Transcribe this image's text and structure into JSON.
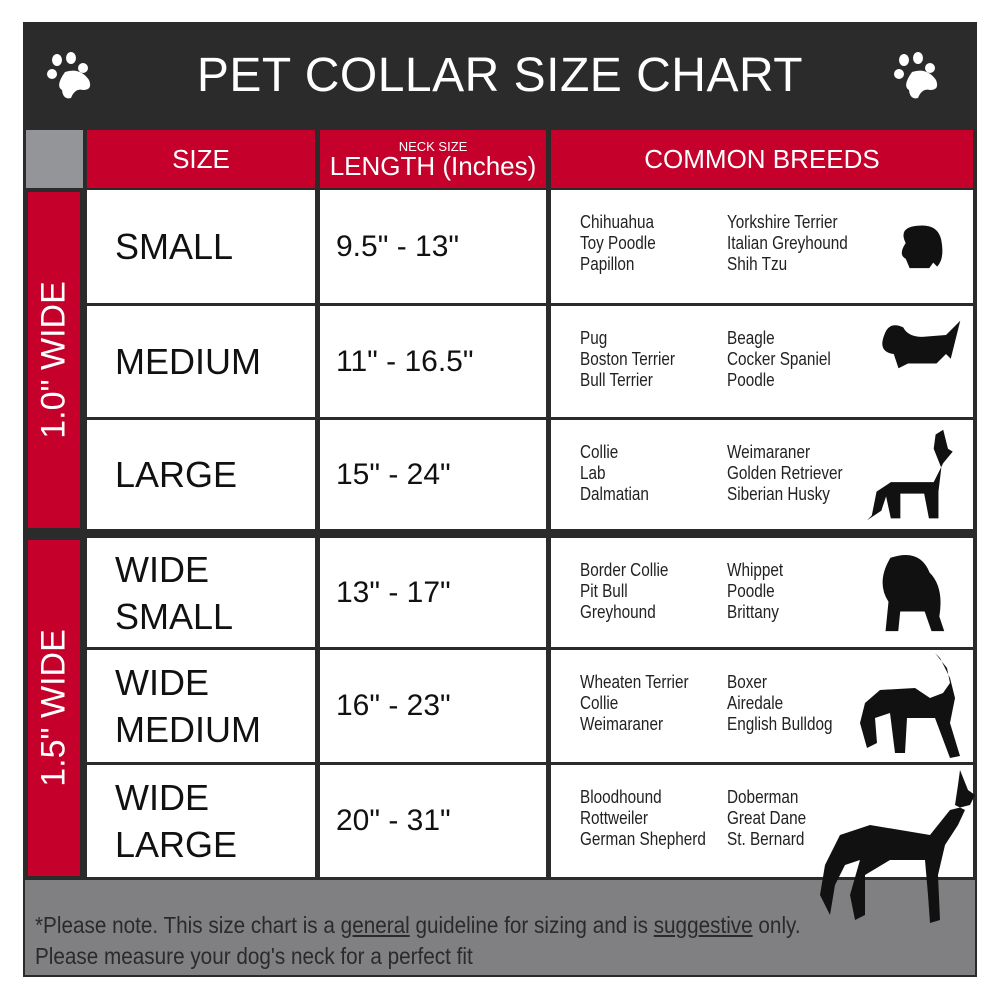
{
  "title": "PET COLLAR SIZE CHART",
  "headers": {
    "size": "SIZE",
    "length_small": "NECK SIZE",
    "length": "LENGTH (Inches)",
    "breeds": "COMMON BREEDS"
  },
  "groups": [
    {
      "label": "1.0\" WIDE"
    },
    {
      "label": "1.5\" WIDE"
    }
  ],
  "rows": [
    {
      "size": "SMALL",
      "length": "9.5\" - 13\"",
      "breeds1": [
        "Chihuahua",
        "Toy Poodle",
        "Papillon"
      ],
      "breeds2": [
        "Yorkshire Terrier",
        "Italian Greyhound",
        "Shih Tzu"
      ]
    },
    {
      "size": "MEDIUM",
      "length": "11\" - 16.5\"",
      "breeds1": [
        "Pug",
        "Boston Terrier",
        "Bull Terrier"
      ],
      "breeds2": [
        "Beagle",
        "Cocker Spaniel",
        "Poodle"
      ]
    },
    {
      "size": "LARGE",
      "length": "15\" - 24\"",
      "breeds1": [
        "Collie",
        "Lab",
        "Dalmatian"
      ],
      "breeds2": [
        "Weimaraner",
        "Golden Retriever",
        "Siberian Husky"
      ]
    },
    {
      "size": "WIDE SMALL",
      "length": "13\" - 17\"",
      "breeds1": [
        "Border Collie",
        "Pit Bull",
        "Greyhound"
      ],
      "breeds2": [
        "Whippet",
        "Poodle",
        "Brittany"
      ]
    },
    {
      "size": "WIDE MEDIUM",
      "length": "16\" - 23\"",
      "breeds1": [
        "Wheaten Terrier",
        "Collie",
        "Weimaraner"
      ],
      "breeds2": [
        "Boxer",
        "Airedale",
        "English Bulldog"
      ]
    },
    {
      "size": "WIDE LARGE",
      "length": "20\" - 31\"",
      "breeds1": [
        "Bloodhound",
        "Rottweiler",
        "German Shepherd"
      ],
      "breeds2": [
        "Doberman",
        "Great Dane",
        "St. Bernard"
      ]
    }
  ],
  "footer": {
    "p1": "*Please note. This size chart is a",
    "u1": "general",
    "p2": " guideline for sizing and is",
    "u2": "suggestive",
    "p3": " only.",
    "line2": "Please measure your dog's neck for a perfect fit"
  },
  "colors": {
    "header": "#2b2b2b",
    "accent": "#c4002b",
    "footer": "#808083"
  },
  "icons": [
    "paw-icon",
    "dog-silhouette-icon"
  ]
}
